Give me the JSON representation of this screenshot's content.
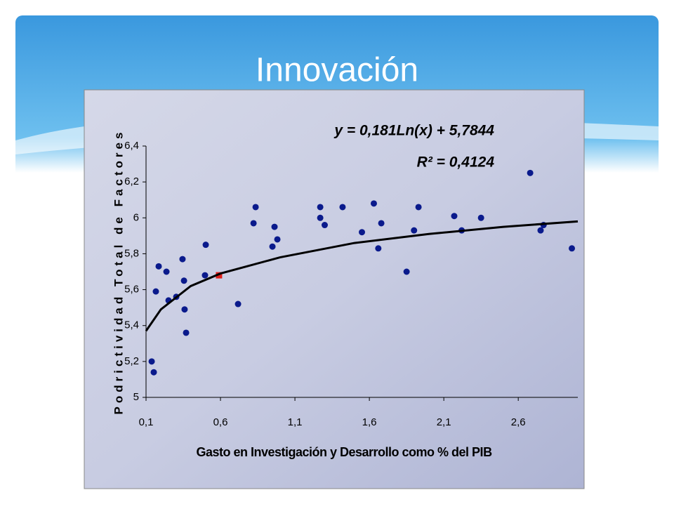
{
  "chart_data": {
    "type": "scatter",
    "slide_title": "Innovación",
    "xlabel": "Gasto en Investigación y Desarrollo como % del PIB",
    "ylabel": "Podrictividad Total de Factores",
    "annotations": [
      "y = 0,181Ln(x) + 5,7844",
      "R² = 0,4124"
    ],
    "xlim": [
      0.1,
      3.0
    ],
    "ylim": [
      5,
      6.4
    ],
    "xticks": [
      {
        "value": 0.1,
        "label": "0,1"
      },
      {
        "value": 0.6,
        "label": "0,6"
      },
      {
        "value": 1.1,
        "label": "1,1"
      },
      {
        "value": 1.6,
        "label": "1,6"
      },
      {
        "value": 2.1,
        "label": "2,1"
      },
      {
        "value": 2.6,
        "label": "2,6"
      }
    ],
    "yticks": [
      5,
      {
        "value": 5.2,
        "label": "5,2"
      },
      {
        "value": 5.4,
        "label": "5,4"
      },
      {
        "value": 5.6,
        "label": "5,6"
      },
      {
        "value": 5.8,
        "label": "5,8"
      },
      6,
      {
        "value": 6.2,
        "label": "6,2"
      },
      {
        "value": 6.4,
        "label": "6,4"
      }
    ],
    "grid": false,
    "series": [
      {
        "color": "#0a1a8c",
        "marker": "circle",
        "x": [
          0.138,
          0.152,
          0.166,
          0.185,
          0.237,
          0.251,
          0.303,
          0.345,
          0.355,
          0.359,
          0.369,
          0.496,
          0.501,
          0.718,
          0.822,
          0.836,
          0.949,
          0.963,
          0.982,
          1.27,
          1.27,
          1.3,
          1.42,
          1.55,
          1.63,
          1.66,
          1.68,
          1.85,
          1.9,
          1.93,
          2.17,
          2.22,
          2.35,
          2.68,
          2.75,
          2.77,
          2.96
        ],
        "values": [
          5.2,
          5.14,
          5.59,
          5.73,
          5.7,
          5.54,
          5.56,
          5.77,
          5.65,
          5.49,
          5.36,
          5.68,
          5.85,
          5.52,
          5.97,
          6.06,
          5.84,
          5.95,
          5.88,
          6.0,
          6.06,
          5.96,
          6.06,
          5.92,
          6.08,
          5.83,
          5.97,
          5.7,
          5.93,
          6.06,
          6.01,
          5.93,
          6.0,
          6.25,
          5.93,
          5.96,
          5.83
        ]
      },
      {
        "color": "#e0201a",
        "marker": "square",
        "x": [
          0.59
        ],
        "values": [
          5.68
        ]
      },
      {
        "color": "#000000",
        "marker": "line",
        "x": [
          0.1,
          0.2,
          0.4,
          0.6,
          1.0,
          1.5,
          2.0,
          2.5,
          3.0
        ],
        "values": [
          5.37,
          5.49,
          5.62,
          5.69,
          5.78,
          5.86,
          5.91,
          5.95,
          5.98
        ]
      }
    ]
  }
}
